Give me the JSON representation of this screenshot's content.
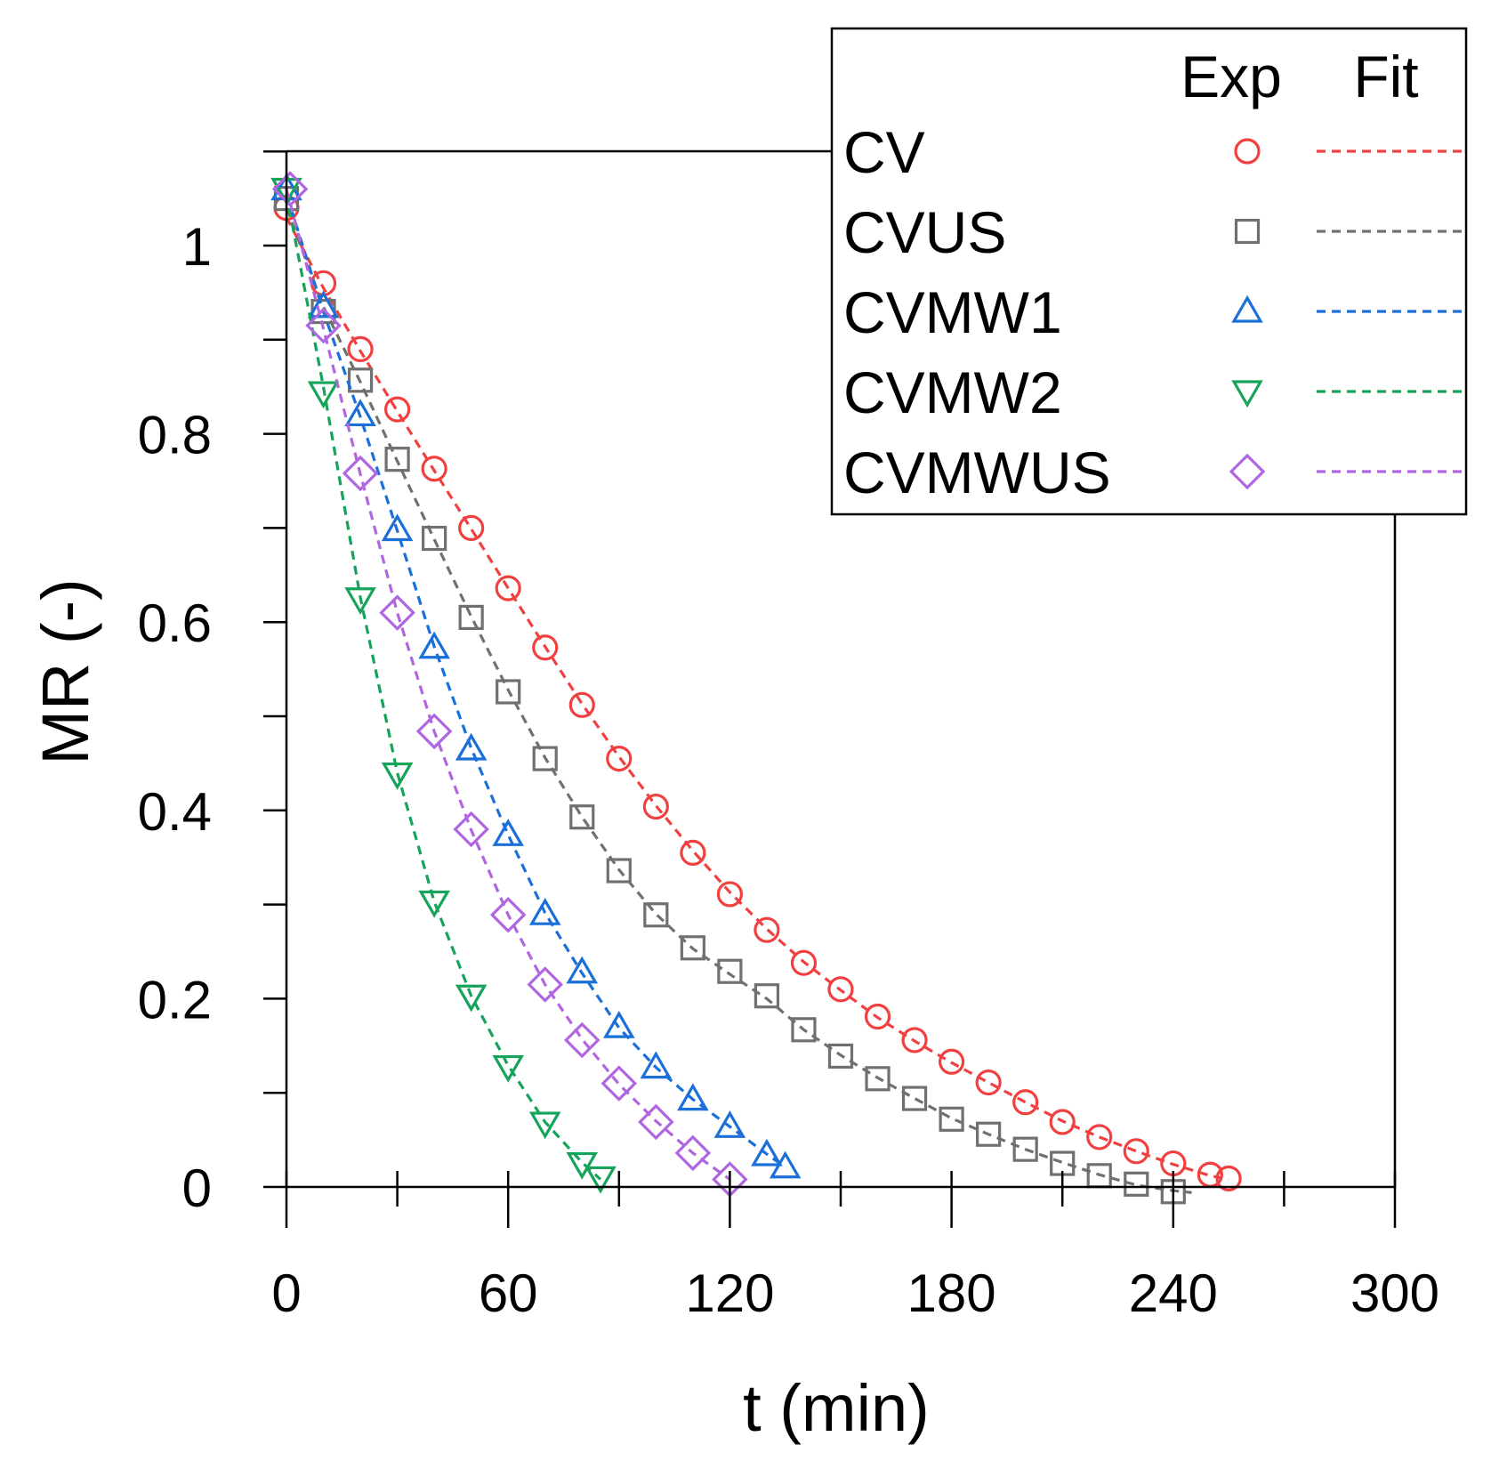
{
  "chart_data": {
    "type": "scatter",
    "xlabel": "t (min)",
    "ylabel": "MR (-)",
    "xlim": [
      0,
      300
    ],
    "ylim": [
      0,
      1.1
    ],
    "xticks": [
      0,
      60,
      120,
      180,
      240,
      300
    ],
    "xtick_labels": [
      "0",
      "60",
      "120",
      "180",
      "240",
      "300"
    ],
    "yticks": [
      0,
      0.2,
      0.4,
      0.6,
      0.8,
      1
    ],
    "ytick_labels": [
      "0",
      "0.2",
      "0.4",
      "0.6",
      "0.8",
      "1"
    ],
    "grid": false,
    "legend": {
      "placement": "top-right",
      "header_exp": "Exp",
      "header_fit": "Fit"
    },
    "series": [
      {
        "name": "CV",
        "color": "#f04040",
        "marker": "circle",
        "x": [
          0,
          10,
          20,
          30,
          40,
          50,
          60,
          70,
          80,
          90,
          100,
          110,
          120,
          130,
          140,
          150,
          160,
          170,
          180,
          190,
          200,
          210,
          220,
          230,
          240,
          250,
          255
        ],
        "y": [
          1.04,
          0.96,
          0.89,
          0.826,
          0.763,
          0.7,
          0.636,
          0.573,
          0.512,
          0.455,
          0.404,
          0.355,
          0.311,
          0.273,
          0.238,
          0.21,
          0.181,
          0.156,
          0.133,
          0.111,
          0.09,
          0.069,
          0.053,
          0.038,
          0.025,
          0.013,
          0.009
        ],
        "fit_x": [
          0,
          10,
          20,
          30,
          40,
          50,
          60,
          70,
          80,
          90,
          100,
          110,
          120,
          130,
          140,
          150,
          160,
          170,
          180,
          190,
          200,
          210,
          220,
          230,
          240,
          250,
          255
        ],
        "fit_y": [
          1.03,
          0.955,
          0.888,
          0.824,
          0.761,
          0.699,
          0.636,
          0.574,
          0.513,
          0.457,
          0.405,
          0.357,
          0.313,
          0.274,
          0.239,
          0.209,
          0.18,
          0.155,
          0.132,
          0.111,
          0.09,
          0.07,
          0.053,
          0.038,
          0.024,
          0.012,
          0.008
        ]
      },
      {
        "name": "CVUS",
        "color": "#707070",
        "marker": "square",
        "x": [
          0,
          10,
          20,
          30,
          40,
          50,
          60,
          70,
          80,
          90,
          100,
          110,
          120,
          130,
          140,
          150,
          160,
          170,
          180,
          190,
          200,
          210,
          220,
          230,
          240
        ],
        "y": [
          1.05,
          0.93,
          0.857,
          0.773,
          0.689,
          0.605,
          0.526,
          0.455,
          0.393,
          0.336,
          0.289,
          0.254,
          0.229,
          0.203,
          0.167,
          0.139,
          0.115,
          0.094,
          0.072,
          0.056,
          0.04,
          0.025,
          0.012,
          0.003,
          -0.005
        ],
        "fit_x": [
          0,
          10,
          20,
          30,
          40,
          50,
          60,
          70,
          80,
          90,
          100,
          110,
          120,
          130,
          140,
          150,
          160,
          170,
          180,
          190,
          200,
          210,
          220,
          230,
          240,
          245
        ],
        "fit_y": [
          1.04,
          0.935,
          0.855,
          0.771,
          0.688,
          0.606,
          0.528,
          0.456,
          0.393,
          0.337,
          0.29,
          0.253,
          0.226,
          0.2,
          0.167,
          0.14,
          0.116,
          0.094,
          0.073,
          0.056,
          0.04,
          0.026,
          0.013,
          0.002,
          -0.004,
          -0.006
        ]
      },
      {
        "name": "CVMW1",
        "color": "#1a6fd8",
        "marker": "triangle-up",
        "x": [
          0,
          10,
          20,
          30,
          40,
          50,
          60,
          70,
          80,
          90,
          100,
          110,
          120,
          130,
          135
        ],
        "y": [
          1.06,
          0.935,
          0.82,
          0.698,
          0.573,
          0.465,
          0.374,
          0.29,
          0.228,
          0.17,
          0.127,
          0.093,
          0.064,
          0.034,
          0.021
        ],
        "fit_x": [
          0,
          10,
          20,
          30,
          40,
          50,
          60,
          70,
          80,
          90,
          100,
          110,
          120,
          130,
          135
        ],
        "fit_y": [
          1.055,
          0.93,
          0.818,
          0.697,
          0.574,
          0.466,
          0.374,
          0.291,
          0.227,
          0.169,
          0.127,
          0.093,
          0.064,
          0.035,
          0.021
        ]
      },
      {
        "name": "CVMW2",
        "color": "#16a35a",
        "marker": "triangle-down",
        "x": [
          0,
          10,
          20,
          30,
          40,
          50,
          60,
          70,
          80,
          85
        ],
        "y": [
          1.06,
          0.844,
          0.625,
          0.439,
          0.303,
          0.203,
          0.128,
          0.068,
          0.025,
          0.01
        ],
        "fit_x": [
          0,
          10,
          20,
          30,
          40,
          50,
          60,
          70,
          80,
          85
        ],
        "fit_y": [
          1.055,
          0.85,
          0.626,
          0.44,
          0.303,
          0.203,
          0.129,
          0.069,
          0.026,
          0.008
        ]
      },
      {
        "name": "CVMWUS",
        "color": "#b066e0",
        "marker": "diamond",
        "x": [
          1,
          10,
          20,
          30,
          40,
          50,
          60,
          70,
          80,
          90,
          100,
          110,
          120
        ],
        "y": [
          1.06,
          0.915,
          0.758,
          0.61,
          0.484,
          0.38,
          0.289,
          0.215,
          0.156,
          0.11,
          0.069,
          0.036,
          0.008
        ],
        "fit_x": [
          0,
          10,
          20,
          30,
          40,
          50,
          60,
          70,
          80,
          90,
          100,
          110,
          120
        ],
        "fit_y": [
          1.06,
          0.912,
          0.757,
          0.61,
          0.484,
          0.379,
          0.289,
          0.215,
          0.157,
          0.109,
          0.07,
          0.036,
          0.008
        ]
      }
    ]
  }
}
